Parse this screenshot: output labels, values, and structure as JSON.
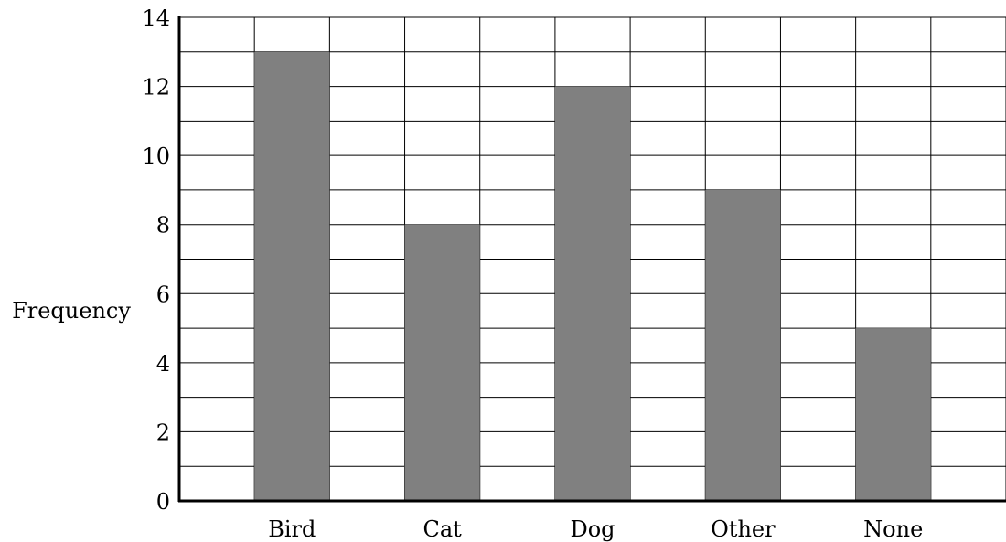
{
  "chart_data": {
    "type": "bar",
    "categories": [
      "Bird",
      "Cat",
      "Dog",
      "Other",
      "None"
    ],
    "values": [
      13,
      8,
      12,
      9,
      5
    ],
    "title": "",
    "xlabel": "",
    "ylabel": "Frequency",
    "ylim": [
      0,
      14
    ],
    "yticks": [
      0,
      2,
      4,
      6,
      8,
      10,
      12,
      14
    ],
    "grid": true,
    "bar_color": "#808080",
    "grid_color": "#000000",
    "axis_color": "#000000"
  }
}
